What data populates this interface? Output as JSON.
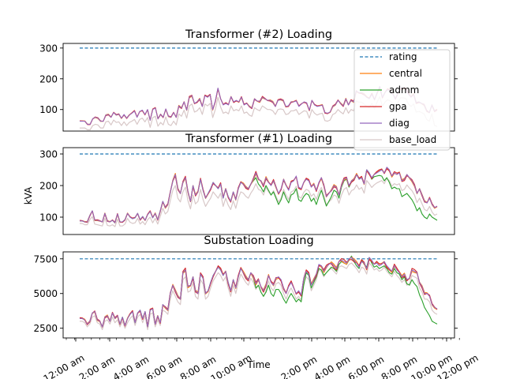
{
  "chart_data": {
    "type": "line",
    "ylabel": "kVA",
    "xlabel": "Time",
    "x_tick_labels": [
      "12:00 am",
      "2:00 am",
      "4:00 am",
      "6:00 am",
      "8:00 am",
      "10:00 am",
      "2:00 pm",
      "4:00 pm",
      "6:00 pm",
      "8:00 pm",
      "10:00 pm",
      "12:00 pm"
    ],
    "legend": {
      "placement": "upper-right",
      "entries": [
        {
          "name": "rating",
          "color": "#1f77b4",
          "style": "dashed"
        },
        {
          "name": "central",
          "color": "#ff7f0e",
          "style": "solid"
        },
        {
          "name": "admm",
          "color": "#2ca02c",
          "style": "solid"
        },
        {
          "name": "gpa",
          "color": "#d62728",
          "style": "solid"
        },
        {
          "name": "diag",
          "color": "#9467bd",
          "style": "solid"
        },
        {
          "name": "base_load",
          "color": "#d8c8c8",
          "style": "solid"
        }
      ]
    },
    "panels": [
      {
        "title": "Transformer (#2) Loading",
        "yticks": [
          "100",
          "200",
          "300"
        ],
        "ytick_values": [
          100,
          200,
          300
        ],
        "ylim": [
          30,
          315
        ],
        "rating": 300,
        "diag": [
          62,
          62,
          62,
          52,
          52,
          70,
          75,
          72,
          62,
          62,
          82,
          84,
          75,
          90,
          82,
          85,
          72,
          84,
          72,
          82,
          88,
          95,
          75,
          94,
          98,
          84,
          100,
          65,
          100,
          105,
          70,
          85,
          75,
          102,
          78,
          75,
          90,
          75,
          112,
          105,
          125,
          98,
          140,
          145,
          120,
          125,
          135,
          110,
          145,
          140,
          148,
          100,
          128,
          170,
          135,
          115,
          120,
          115,
          142,
          125,
          130,
          125,
          140,
          115,
          120,
          110,
          105,
          135,
          128,
          125,
          140,
          135,
          130,
          130,
          125,
          110,
          130,
          132,
          130,
          110,
          112,
          125,
          125,
          128,
          110,
          118,
          125,
          122,
          98,
          130,
          115,
          110,
          112,
          115,
          90,
          88,
          92,
          110,
          115,
          130,
          120,
          112,
          135,
          115,
          130,
          125,
          160,
          155,
          155,
          150,
          140,
          135,
          150,
          132,
          155,
          175,
          140,
          155,
          165,
          160,
          150,
          135,
          155,
          170,
          170,
          168,
          150,
          140,
          150,
          122,
          125,
          120,
          115,
          95,
          90,
          115,
          95,
          100
        ],
        "base_load": [
          40,
          40,
          40,
          34,
          34,
          48,
          52,
          50,
          40,
          40,
          60,
          62,
          50,
          66,
          58,
          60,
          48,
          60,
          48,
          58,
          62,
          68,
          52,
          68,
          72,
          60,
          74,
          42,
          74,
          78,
          46,
          58,
          50,
          76,
          52,
          48,
          62,
          50,
          86,
          78,
          98,
          72,
          112,
          118,
          92,
          96,
          106,
          84,
          118,
          112,
          120,
          74,
          100,
          140,
          108,
          88,
          92,
          86,
          112,
          96,
          100,
          96,
          112,
          88,
          92,
          82,
          78,
          106,
          100,
          96,
          112,
          106,
          100,
          100,
          96,
          84,
          100,
          102,
          100,
          84,
          86,
          96,
          96,
          100,
          84,
          90,
          96,
          94,
          72,
          100,
          88,
          82,
          86,
          88,
          64,
          62,
          66,
          84,
          88,
          100,
          92,
          86,
          106,
          88,
          100,
          96,
          128,
          124,
          124,
          118,
          110,
          106,
          120,
          102,
          124,
          142,
          110,
          124,
          132,
          128,
          120,
          106,
          124,
          138,
          138,
          136,
          118,
          110,
          118,
          92,
          94,
          90,
          86,
          68,
          62,
          86,
          48,
          45
        ]
      },
      {
        "title": "Transformer (#1) Loading",
        "yticks": [
          "100",
          "200",
          "300"
        ],
        "ytick_values": [
          100,
          200,
          300
        ],
        "ylim": [
          45,
          320
        ],
        "rating": 300,
        "diag": [
          88,
          88,
          85,
          85,
          105,
          120,
          90,
          90,
          88,
          85,
          112,
          88,
          85,
          90,
          82,
          110,
          85,
          85,
          92,
          112,
          100,
          95,
          98,
          112,
          92,
          102,
          90,
          108,
          118,
          98,
          112,
          92,
          120,
          150,
          130,
          140,
          178,
          215,
          235,
          190,
          175,
          210,
          225,
          180,
          150,
          200,
          170,
          180,
          220,
          185,
          160,
          175,
          190,
          210,
          200,
          190,
          205,
          160,
          190,
          165,
          150,
          180,
          155,
          190,
          210,
          205,
          195,
          190,
          205,
          220,
          240,
          220,
          215,
          200,
          225,
          210,
          200,
          215,
          195,
          175,
          190,
          220,
          200,
          185,
          210,
          215,
          230,
          195,
          190,
          210,
          220,
          215,
          195,
          205,
          185,
          210,
          225,
          200,
          165,
          175,
          185,
          200,
          195,
          170,
          200,
          220,
          225,
          200,
          215,
          220,
          235,
          220,
          225,
          205,
          250,
          240,
          225,
          235,
          240,
          245,
          250,
          240,
          258,
          250,
          230,
          240,
          235,
          240,
          215,
          220,
          235,
          225,
          215,
          200,
          175,
          190,
          170,
          150,
          145,
          160,
          140,
          130,
          135
        ],
        "admm": [
          88,
          88,
          85,
          85,
          105,
          120,
          90,
          90,
          88,
          85,
          112,
          88,
          85,
          90,
          82,
          110,
          85,
          85,
          92,
          112,
          100,
          95,
          98,
          112,
          92,
          102,
          90,
          108,
          118,
          98,
          112,
          92,
          120,
          150,
          130,
          140,
          178,
          215,
          235,
          190,
          175,
          210,
          225,
          180,
          150,
          200,
          170,
          180,
          220,
          185,
          160,
          175,
          190,
          210,
          200,
          190,
          205,
          160,
          190,
          165,
          150,
          180,
          155,
          190,
          210,
          205,
          195,
          190,
          205,
          215,
          225,
          205,
          195,
          180,
          200,
          185,
          170,
          180,
          160,
          140,
          155,
          180,
          160,
          145,
          170,
          175,
          190,
          155,
          150,
          165,
          175,
          170,
          150,
          160,
          140,
          165,
          185,
          160,
          135,
          150,
          165,
          185,
          180,
          160,
          195,
          215,
          220,
          195,
          212,
          218,
          235,
          220,
          225,
          205,
          250,
          240,
          220,
          228,
          230,
          232,
          230,
          215,
          225,
          210,
          190,
          195,
          190,
          190,
          165,
          170,
          175,
          165,
          155,
          140,
          120,
          130,
          110,
          100,
          95,
          110,
          100,
          95,
          90
        ],
        "base_load": [
          80,
          80,
          76,
          76,
          92,
          102,
          78,
          76,
          74,
          72,
          96,
          74,
          72,
          76,
          70,
          94,
          72,
          72,
          78,
          96,
          84,
          80,
          82,
          96,
          78,
          86,
          76,
          92,
          100,
          82,
          96,
          78,
          102,
          128,
          110,
          118,
          152,
          185,
          200,
          160,
          148,
          180,
          195,
          152,
          126,
          170,
          142,
          150,
          188,
          156,
          134,
          148,
          160,
          180,
          170,
          160,
          176,
          134,
          160,
          138,
          124,
          152,
          128,
          160,
          180,
          176,
          166,
          160,
          176,
          188,
          206,
          188,
          184,
          170,
          194,
          180,
          170,
          184,
          166,
          148,
          160,
          188,
          170,
          156,
          180,
          184,
          198,
          166,
          160,
          178,
          188,
          184,
          166,
          174,
          156,
          180,
          194,
          170,
          140,
          148,
          156,
          170,
          166,
          144,
          170,
          188,
          194,
          170,
          184,
          188,
          202,
          188,
          194,
          176,
          216,
          206,
          194,
          202,
          208,
          212,
          216,
          206,
          222,
          216,
          198,
          206,
          202,
          206,
          184,
          188,
          202,
          192,
          184,
          170,
          146,
          160,
          142,
          124,
          120,
          134,
          116,
          106,
          110
        ]
      },
      {
        "title": "Substation Loading",
        "yticks": [
          "2500",
          "5000",
          "7500"
        ],
        "ytick_values": [
          2500,
          5000,
          7500
        ],
        "ylim": [
          1800,
          8000
        ],
        "rating": 7500,
        "diag": [
          3200,
          3200,
          3100,
          2800,
          3000,
          3600,
          3700,
          3100,
          3000,
          2600,
          3300,
          3400,
          3000,
          3600,
          3200,
          3400,
          2800,
          3300,
          2700,
          3200,
          3500,
          3700,
          2900,
          3600,
          3800,
          3200,
          3700,
          2600,
          3800,
          3900,
          2800,
          3400,
          2900,
          4200,
          4000,
          3800,
          5000,
          5600,
          5200,
          4800,
          4600,
          6500,
          6700,
          5500,
          5600,
          6200,
          5200,
          5000,
          6400,
          6100,
          5000,
          5200,
          5800,
          6300,
          6600,
          6900,
          6700,
          6300,
          6600,
          5800,
          5200,
          6000,
          5400,
          6200,
          6800,
          6500,
          6200,
          6000,
          6500,
          6200,
          5700,
          6000,
          5500,
          5200,
          5600,
          6300,
          5800,
          5600,
          6100,
          6200,
          6000,
          5400,
          5000,
          5500,
          5800,
          5400,
          5000,
          5200,
          4900,
          6100,
          6600,
          6400,
          5600,
          6000,
          6400,
          7100,
          7000,
          6600,
          6900,
          7100,
          7200,
          7000,
          6800,
          7300,
          7400,
          7300,
          7200,
          7500,
          7600,
          7400,
          7200,
          6900,
          7300,
          7200,
          6800,
          7600,
          7400,
          7100,
          7200,
          7000,
          7100,
          7300,
          7000,
          6800,
          6600,
          7000,
          6700,
          6500,
          6200,
          6400,
          6000,
          6100,
          6700,
          6600,
          6500,
          5800,
          5500,
          5000,
          5000,
          4800,
          4200,
          4000,
          3900
        ],
        "admm": [
          3200,
          3200,
          3100,
          2800,
          3000,
          3600,
          3700,
          3100,
          3000,
          2600,
          3300,
          3400,
          3000,
          3600,
          3200,
          3400,
          2800,
          3300,
          2700,
          3200,
          3500,
          3700,
          2900,
          3600,
          3800,
          3200,
          3700,
          2600,
          3800,
          3900,
          2800,
          3400,
          2900,
          4200,
          4000,
          3800,
          5000,
          5600,
          5200,
          4800,
          4600,
          6500,
          6700,
          5500,
          5600,
          6200,
          5200,
          5000,
          6400,
          6100,
          5000,
          5200,
          5800,
          6300,
          6600,
          6900,
          6700,
          6300,
          6600,
          5800,
          5200,
          6000,
          5400,
          6200,
          6800,
          6500,
          6200,
          6000,
          6500,
          6100,
          5400,
          5600,
          5100,
          4800,
          5100,
          5600,
          5000,
          4800,
          5300,
          5300,
          5000,
          4600,
          4300,
          4700,
          5000,
          4700,
          4400,
          4600,
          4400,
          5600,
          6500,
          6300,
          5400,
          5800,
          6200,
          6800,
          6700,
          6300,
          6500,
          6700,
          6900,
          6800,
          6600,
          7100,
          7300,
          7200,
          7100,
          7400,
          7700,
          7300,
          7000,
          6800,
          7400,
          7100,
          6900,
          7600,
          7200,
          6900,
          7000,
          6800,
          6900,
          7000,
          6800,
          6500,
          6400,
          6800,
          6500,
          6400,
          6000,
          6200,
          5700,
          5600,
          6000,
          5700,
          5500,
          4900,
          4500,
          4000,
          3700,
          3400,
          3000,
          2900,
          2800
        ],
        "base_load": [
          3000,
          3000,
          2900,
          2600,
          2800,
          3300,
          3400,
          2900,
          2800,
          2400,
          3000,
          3100,
          2800,
          3300,
          2900,
          3100,
          2600,
          3000,
          2500,
          2900,
          3200,
          3400,
          2700,
          3300,
          3500,
          2900,
          3400,
          2400,
          3500,
          3600,
          2600,
          3100,
          2700,
          3800,
          3700,
          3500,
          4600,
          5200,
          4800,
          4400,
          4200,
          6000,
          6200,
          5100,
          5200,
          5800,
          4800,
          4600,
          6000,
          5700,
          4600,
          4800,
          5400,
          5900,
          6200,
          6500,
          6300,
          5900,
          6200,
          5400,
          4800,
          5600,
          5000,
          5800,
          6400,
          6100,
          5800,
          5600,
          6100,
          5800,
          5300,
          5600,
          5100,
          4800,
          5200,
          5900,
          5400,
          5200,
          5700,
          5800,
          5600,
          5000,
          4600,
          5100,
          5400,
          5000,
          4600,
          4800,
          4500,
          5700,
          6200,
          6000,
          5200,
          5600,
          6000,
          6700,
          6600,
          6200,
          6500,
          6700,
          6800,
          6600,
          6400,
          6900,
          7000,
          6900,
          6800,
          7100,
          7200,
          7000,
          6800,
          6500,
          6900,
          6800,
          6400,
          7200,
          7000,
          6700,
          6800,
          6600,
          6700,
          6900,
          6600,
          6400,
          6200,
          6600,
          6300,
          6100,
          5800,
          6000,
          5600,
          5700,
          6300,
          6200,
          6100,
          5400,
          5100,
          4600,
          4600,
          4400,
          3800,
          3600,
          3500
        ]
      }
    ]
  }
}
